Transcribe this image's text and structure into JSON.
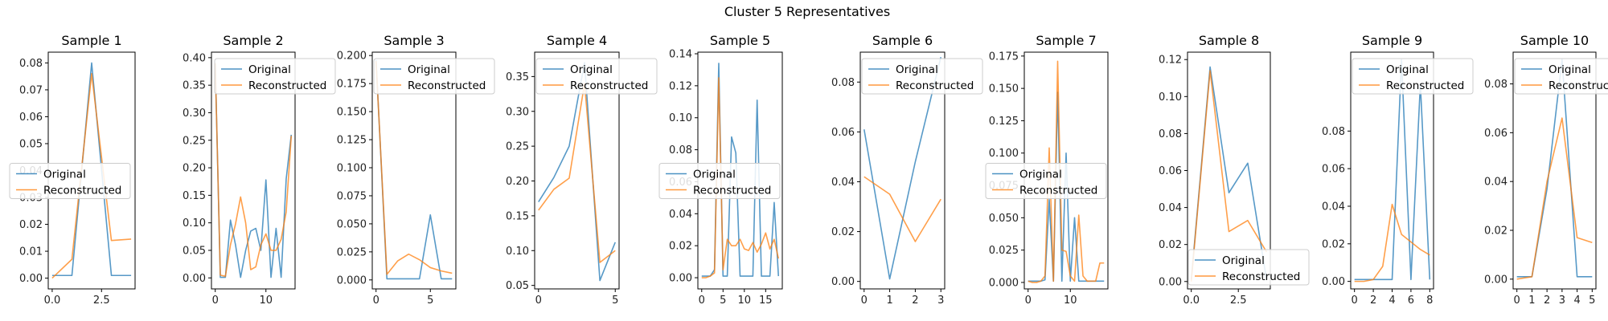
{
  "figure": {
    "suptitle": "Cluster 5 Representatives"
  },
  "colors": {
    "original": "#1f77b4",
    "reconstructed": "#ff7f0e"
  },
  "chart_data": [
    {
      "type": "line",
      "title": "Sample 1",
      "x": [
        0,
        1,
        2,
        3,
        4
      ],
      "ylim": [
        -0.004,
        0.084
      ],
      "xlim": [
        -0.2,
        4.2
      ],
      "xticks": [
        {
          "v": 0,
          "t": "0.0"
        },
        {
          "v": 2.5,
          "t": "2.5"
        }
      ],
      "yticks": [
        {
          "v": 0,
          "t": "0.00"
        },
        {
          "v": 0.01,
          "t": "0.01"
        },
        {
          "v": 0.02,
          "t": "0.02"
        },
        {
          "v": 0.03,
          "t": "0.03"
        },
        {
          "v": 0.04,
          "t": "0.04"
        },
        {
          "v": 0.05,
          "t": "0.05"
        },
        {
          "v": 0.06,
          "t": "0.06"
        },
        {
          "v": 0.07,
          "t": "0.07"
        },
        {
          "v": 0.08,
          "t": "0.08"
        }
      ],
      "legend": "center-left",
      "series": [
        {
          "name": "Original",
          "values": [
            0.001,
            0.001,
            0.08,
            0.001,
            0.001
          ]
        },
        {
          "name": "Reconstructed",
          "values": [
            0.0,
            0.007,
            0.076,
            0.014,
            0.0145
          ]
        }
      ]
    },
    {
      "type": "line",
      "title": "Sample 2",
      "x": [
        0,
        1,
        2,
        3,
        4,
        5,
        6,
        7,
        8,
        9,
        10,
        11,
        12,
        13,
        14,
        15
      ],
      "ylim": [
        -0.02,
        0.41
      ],
      "xlim": [
        -0.75,
        15.75
      ],
      "xticks": [
        {
          "v": 0,
          "t": "0"
        },
        {
          "v": 10,
          "t": "10"
        }
      ],
      "yticks": [
        {
          "v": 0,
          "t": "0.00"
        },
        {
          "v": 0.05,
          "t": "0.05"
        },
        {
          "v": 0.1,
          "t": "0.10"
        },
        {
          "v": 0.15,
          "t": "0.15"
        },
        {
          "v": 0.2,
          "t": "0.20"
        },
        {
          "v": 0.25,
          "t": "0.25"
        },
        {
          "v": 0.3,
          "t": "0.30"
        },
        {
          "v": 0.35,
          "t": "0.35"
        },
        {
          "v": 0.4,
          "t": "0.40"
        }
      ],
      "legend": "upper-center",
      "series": [
        {
          "name": "Original",
          "values": [
            0.39,
            0.001,
            0.001,
            0.105,
            0.06,
            0.001,
            0.05,
            0.085,
            0.09,
            0.05,
            0.178,
            0.001,
            0.09,
            0.001,
            0.18,
            0.26
          ]
        },
        {
          "name": "Reconstructed",
          "values": [
            0.39,
            0.005,
            0.003,
            0.06,
            0.098,
            0.147,
            0.1,
            0.015,
            0.02,
            0.06,
            0.08,
            0.05,
            0.05,
            0.07,
            0.12,
            0.258
          ]
        }
      ]
    },
    {
      "type": "line",
      "title": "Sample 3",
      "x": [
        0,
        1,
        2,
        3,
        4,
        5,
        6,
        7
      ],
      "ylim": [
        -0.008,
        0.203
      ],
      "xlim": [
        -0.35,
        7.35
      ],
      "xticks": [
        {
          "v": 0,
          "t": "0"
        },
        {
          "v": 5,
          "t": "5"
        }
      ],
      "yticks": [
        {
          "v": 0,
          "t": "0.000"
        },
        {
          "v": 0.025,
          "t": "0.025"
        },
        {
          "v": 0.05,
          "t": "0.050"
        },
        {
          "v": 0.075,
          "t": "0.075"
        },
        {
          "v": 0.1,
          "t": "0.100"
        },
        {
          "v": 0.125,
          "t": "0.125"
        },
        {
          "v": 0.15,
          "t": "0.150"
        },
        {
          "v": 0.175,
          "t": "0.175"
        },
        {
          "v": 0.2,
          "t": "0.200"
        }
      ],
      "legend": "upper-right",
      "series": [
        {
          "name": "Original",
          "values": [
            0.196,
            0.001,
            0.001,
            0.001,
            0.001,
            0.058,
            0.001,
            0.001
          ]
        },
        {
          "name": "Reconstructed",
          "values": [
            0.195,
            0.005,
            0.017,
            0.023,
            0.018,
            0.011,
            0.008,
            0.006
          ]
        }
      ]
    },
    {
      "type": "line",
      "title": "Sample 4",
      "x": [
        0,
        1,
        2,
        3,
        4,
        5
      ],
      "ylim": [
        0.045,
        0.385
      ],
      "xlim": [
        -0.25,
        5.25
      ],
      "xticks": [
        {
          "v": 0,
          "t": "0"
        },
        {
          "v": 5,
          "t": "5"
        }
      ],
      "yticks": [
        {
          "v": 0.05,
          "t": "0.05"
        },
        {
          "v": 0.1,
          "t": "0.10"
        },
        {
          "v": 0.15,
          "t": "0.15"
        },
        {
          "v": 0.2,
          "t": "0.20"
        },
        {
          "v": 0.25,
          "t": "0.25"
        },
        {
          "v": 0.3,
          "t": "0.30"
        },
        {
          "v": 0.35,
          "t": "0.35"
        }
      ],
      "legend": "upper-right",
      "series": [
        {
          "name": "Original",
          "values": [
            0.17,
            0.205,
            0.25,
            0.37,
            0.057,
            0.112
          ]
        },
        {
          "name": "Reconstructed",
          "values": [
            0.158,
            0.188,
            0.204,
            0.34,
            0.083,
            0.1
          ]
        }
      ]
    },
    {
      "type": "line",
      "title": "Sample 5",
      "x": [
        0,
        1,
        2,
        3,
        4,
        5,
        6,
        7,
        8,
        9,
        10,
        11,
        12,
        13,
        14,
        15,
        16,
        17,
        18
      ],
      "ylim": [
        -0.007,
        0.141
      ],
      "xlim": [
        -0.9,
        18.9
      ],
      "xticks": [
        {
          "v": 0,
          "t": "0"
        },
        {
          "v": 5,
          "t": "5"
        },
        {
          "v": 10,
          "t": "10"
        },
        {
          "v": 15,
          "t": "15"
        }
      ],
      "yticks": [
        {
          "v": 0,
          "t": "0.00"
        },
        {
          "v": 0.02,
          "t": "0.02"
        },
        {
          "v": 0.04,
          "t": "0.04"
        },
        {
          "v": 0.06,
          "t": "0.06"
        },
        {
          "v": 0.08,
          "t": "0.08"
        },
        {
          "v": 0.1,
          "t": "0.10"
        },
        {
          "v": 0.12,
          "t": "0.12"
        },
        {
          "v": 0.14,
          "t": "0.14"
        }
      ],
      "legend": "center-left",
      "series": [
        {
          "name": "Original",
          "values": [
            0.001,
            0.001,
            0.001,
            0.005,
            0.134,
            0.001,
            0.001,
            0.088,
            0.078,
            0.001,
            0.001,
            0.001,
            0.001,
            0.111,
            0.001,
            0.001,
            0.001,
            0.047,
            0.001
          ]
        },
        {
          "name": "Reconstructed",
          "values": [
            0.0,
            0.0,
            0.001,
            0.003,
            0.125,
            0.005,
            0.024,
            0.02,
            0.02,
            0.024,
            0.018,
            0.017,
            0.022,
            0.016,
            0.021,
            0.028,
            0.018,
            0.024,
            0.012
          ]
        }
      ]
    },
    {
      "type": "line",
      "title": "Sample 6",
      "x": [
        0,
        1,
        2,
        3
      ],
      "ylim": [
        -0.003,
        0.092
      ],
      "xlim": [
        -0.15,
        3.15
      ],
      "xticks": [
        {
          "v": 0,
          "t": "0"
        },
        {
          "v": 1,
          "t": "1"
        },
        {
          "v": 2,
          "t": "2"
        },
        {
          "v": 3,
          "t": "3"
        }
      ],
      "yticks": [
        {
          "v": 0,
          "t": "0.00"
        },
        {
          "v": 0.02,
          "t": "0.02"
        },
        {
          "v": 0.04,
          "t": "0.04"
        },
        {
          "v": 0.06,
          "t": "0.06"
        },
        {
          "v": 0.08,
          "t": "0.08"
        }
      ],
      "legend": "upper-left",
      "series": [
        {
          "name": "Original",
          "values": [
            0.061,
            0.001,
            0.048,
            0.09
          ]
        },
        {
          "name": "Reconstructed",
          "values": [
            0.042,
            0.035,
            0.016,
            0.033
          ]
        }
      ]
    },
    {
      "type": "line",
      "title": "Sample 7",
      "x": [
        0,
        1,
        2,
        3,
        4,
        5,
        6,
        7,
        8,
        9,
        10,
        11,
        12,
        13,
        14,
        15,
        16,
        17,
        18
      ],
      "ylim": [
        -0.005,
        0.178
      ],
      "xlim": [
        -0.9,
        18.9
      ],
      "xticks": [
        {
          "v": 0,
          "t": "0"
        },
        {
          "v": 10,
          "t": "10"
        }
      ],
      "yticks": [
        {
          "v": 0,
          "t": "0.000"
        },
        {
          "v": 0.025,
          "t": "0.025"
        },
        {
          "v": 0.05,
          "t": "0.050"
        },
        {
          "v": 0.075,
          "t": "0.075"
        },
        {
          "v": 0.1,
          "t": "0.100"
        },
        {
          "v": 0.125,
          "t": "0.125"
        },
        {
          "v": 0.15,
          "t": "0.150"
        },
        {
          "v": 0.175,
          "t": "0.175"
        }
      ],
      "legend": "center-left",
      "series": [
        {
          "name": "Original",
          "values": [
            0.001,
            0.001,
            0.001,
            0.001,
            0.002,
            0.064,
            0.001,
            0.147,
            0.001,
            0.1,
            0.001,
            0.05,
            0.001,
            0.001,
            0.001,
            0.001,
            0.001,
            0.001,
            0.001
          ]
        },
        {
          "name": "Reconstructed",
          "values": [
            0.001,
            0.0,
            0.0,
            0.001,
            0.005,
            0.104,
            0.001,
            0.171,
            0.025,
            0.024,
            0.005,
            0.001,
            0.052,
            0.005,
            0.001,
            0.001,
            0.001,
            0.015,
            0.015
          ]
        }
      ]
    },
    {
      "type": "line",
      "title": "Sample 8",
      "x": [
        0,
        1,
        2,
        3,
        4
      ],
      "ylim": [
        -0.004,
        0.124
      ],
      "xlim": [
        -0.2,
        4.2
      ],
      "xticks": [
        {
          "v": 0,
          "t": "0.0"
        },
        {
          "v": 2.5,
          "t": "2.5"
        }
      ],
      "yticks": [
        {
          "v": 0,
          "t": "0.00"
        },
        {
          "v": 0.02,
          "t": "0.02"
        },
        {
          "v": 0.04,
          "t": "0.04"
        },
        {
          "v": 0.06,
          "t": "0.06"
        },
        {
          "v": 0.08,
          "t": "0.08"
        },
        {
          "v": 0.1,
          "t": "0.10"
        },
        {
          "v": 0.12,
          "t": "0.12"
        }
      ],
      "legend": "lower-right",
      "series": [
        {
          "name": "Original",
          "values": [
            0.001,
            0.116,
            0.048,
            0.064,
            0.001
          ]
        },
        {
          "name": "Reconstructed",
          "values": [
            0.0,
            0.114,
            0.027,
            0.033,
            0.016
          ]
        }
      ]
    },
    {
      "type": "line",
      "title": "Sample 9",
      "x": [
        0,
        1,
        2,
        3,
        4,
        5,
        6,
        7,
        8
      ],
      "ylim": [
        -0.004,
        0.122
      ],
      "xlim": [
        -0.4,
        8.4
      ],
      "xticks": [
        {
          "v": 0,
          "t": "0"
        },
        {
          "v": 2,
          "t": "2"
        },
        {
          "v": 4,
          "t": "4"
        },
        {
          "v": 6,
          "t": "6"
        },
        {
          "v": 8,
          "t": "8"
        }
      ],
      "yticks": [
        {
          "v": 0,
          "t": "0.00"
        },
        {
          "v": 0.02,
          "t": "0.02"
        },
        {
          "v": 0.04,
          "t": "0.04"
        },
        {
          "v": 0.06,
          "t": "0.06"
        },
        {
          "v": 0.08,
          "t": "0.08"
        }
      ],
      "legend": "upper-right",
      "series": [
        {
          "name": "Original",
          "values": [
            0.001,
            0.001,
            0.001,
            0.001,
            0.001,
            0.118,
            0.001,
            0.105,
            0.001
          ]
        },
        {
          "name": "Reconstructed",
          "values": [
            0.0,
            0.0,
            0.001,
            0.008,
            0.041,
            0.025,
            0.021,
            0.017,
            0.014
          ]
        }
      ]
    },
    {
      "type": "line",
      "title": "Sample 10",
      "x": [
        0,
        1,
        2,
        3,
        4,
        5
      ],
      "ylim": [
        -0.004,
        0.093
      ],
      "xlim": [
        -0.25,
        5.25
      ],
      "xticks": [
        {
          "v": 0,
          "t": "0"
        },
        {
          "v": 1,
          "t": "1"
        },
        {
          "v": 2,
          "t": "2"
        },
        {
          "v": 3,
          "t": "3"
        },
        {
          "v": 4,
          "t": "4"
        },
        {
          "v": 5,
          "t": "5"
        }
      ],
      "yticks": [
        {
          "v": 0,
          "t": "0.00"
        },
        {
          "v": 0.02,
          "t": "0.02"
        },
        {
          "v": 0.04,
          "t": "0.04"
        },
        {
          "v": 0.06,
          "t": "0.06"
        },
        {
          "v": 0.08,
          "t": "0.08"
        }
      ],
      "legend": "upper-right",
      "series": [
        {
          "name": "Original",
          "values": [
            0.001,
            0.001,
            0.037,
            0.09,
            0.001,
            0.001
          ]
        },
        {
          "name": "Reconstructed",
          "values": [
            0.0,
            0.001,
            0.04,
            0.066,
            0.017,
            0.015
          ]
        }
      ]
    }
  ]
}
